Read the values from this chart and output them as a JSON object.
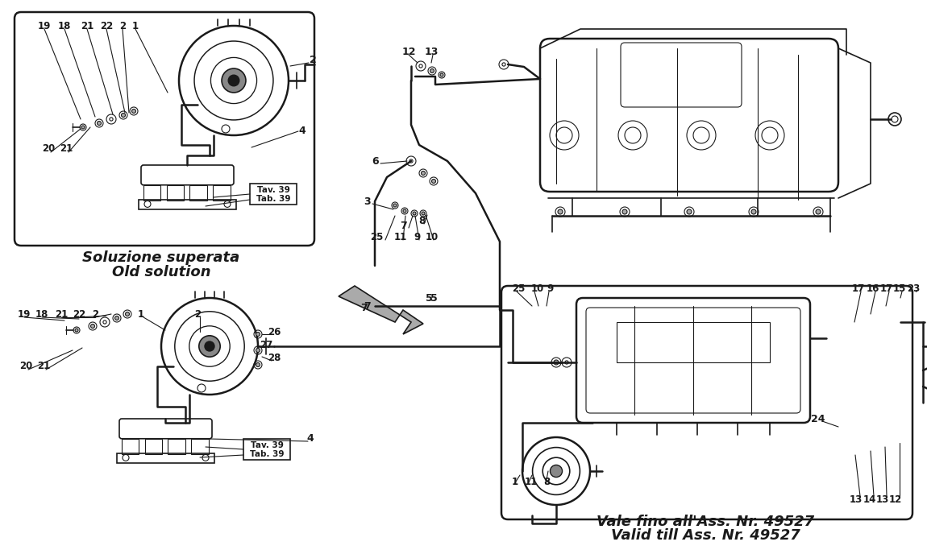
{
  "bg_color": "#ffffff",
  "line_color": "#1a1a1a",
  "text_color": "#1a1a1a",
  "fig_width": 11.5,
  "fig_height": 6.83,
  "old_solution_label_1": "Soluzione superata",
  "old_solution_label_2": "Old solution",
  "new_solution_label_1": "Vale fino all'Ass. Nr. 49527",
  "new_solution_label_2": "Valid till Ass. Nr. 49527",
  "tav_tab_1": "Tav. 39",
  "tav_tab_2": "Tab. 39"
}
